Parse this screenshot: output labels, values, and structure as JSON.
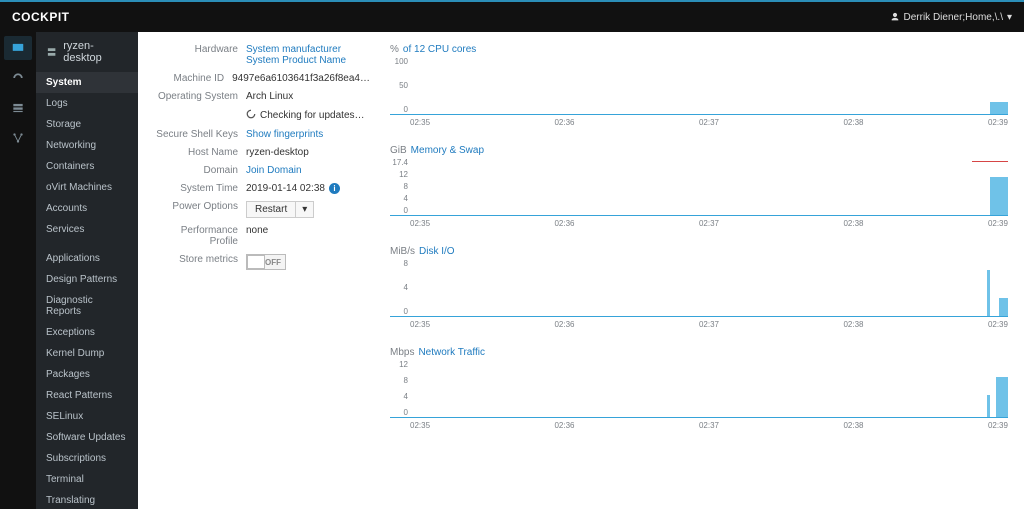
{
  "brand": "COCKPIT",
  "user": {
    "icon": "user-icon",
    "name": "Derrik Diener;Home,\\.\\"
  },
  "iconbar": [
    {
      "name": "dashboard-icon",
      "active": true
    },
    {
      "name": "gauge-icon",
      "active": false
    },
    {
      "name": "storage-icon",
      "active": false
    },
    {
      "name": "network-icon",
      "active": false
    }
  ],
  "host_name": "ryzen-desktop",
  "nav": {
    "items": [
      "System",
      "Logs",
      "Storage",
      "Networking",
      "Containers",
      "oVirt Machines",
      "Accounts",
      "Services",
      "Applications",
      "Design Patterns",
      "Diagnostic Reports",
      "Exceptions",
      "Kernel Dump",
      "Packages",
      "React Patterns",
      "SELinux",
      "Software Updates",
      "Subscriptions",
      "Terminal",
      "Translating"
    ],
    "active_index": 0,
    "gap_after_index": 7
  },
  "details": {
    "rows": [
      {
        "label": "Hardware",
        "value": "System manufacturer System Product Name",
        "link": true
      },
      {
        "label": "Machine ID",
        "value": "9497e6a6103641f3a26f8ea4…"
      },
      {
        "label": "Operating System",
        "value": "Arch Linux"
      },
      {
        "label": "",
        "value": "Checking for updates…",
        "spinner": true
      },
      {
        "label": "Secure Shell Keys",
        "value": "Show fingerprints",
        "link": true
      },
      {
        "label": "Host Name",
        "value": "ryzen-desktop"
      },
      {
        "label": "Domain",
        "value": "Join Domain",
        "link": true
      },
      {
        "label": "System Time",
        "value": "2019-01-14 02:38",
        "info": true
      },
      {
        "label": "Power Options",
        "value": "Restart",
        "dropdown": true
      },
      {
        "label": "Performance Profile",
        "value": "none"
      },
      {
        "label": "Store metrics",
        "value": "OFF",
        "toggle": true
      }
    ]
  },
  "charts": {
    "xaxis_labels": [
      "02:35",
      "02:36",
      "02:37",
      "02:38",
      "02:39"
    ],
    "colors": {
      "line": "#36a3d9",
      "fill": "#6fc2e8",
      "red": "#d64545"
    },
    "blocks": [
      {
        "unit": "%",
        "title": "of 12 CPU cores",
        "ymax": 100,
        "yticks": [
          "100",
          "50",
          "0"
        ],
        "series": {
          "tail": [
            {
              "x": 97,
              "w": 3,
              "h": 12
            }
          ]
        },
        "redline": false
      },
      {
        "unit": "GiB",
        "title": "Memory & Swap",
        "ymax": 17.4,
        "yticks": [
          "17.4",
          "12",
          "8",
          "4",
          "0"
        ],
        "series": {
          "tail": [
            {
              "x": 97,
              "w": 3,
              "h": 38
            }
          ]
        },
        "redline": true
      },
      {
        "unit": "MiB/s",
        "title": "Disk I/O",
        "ymax": 8,
        "yticks": [
          "8",
          "4",
          "0"
        ],
        "series": {
          "tail": [
            {
              "x": 96.5,
              "w": 0.5,
              "h": 46
            },
            {
              "x": 98.5,
              "w": 1.5,
              "h": 18
            }
          ]
        },
        "redline": false
      },
      {
        "unit": "Mbps",
        "title": "Network Traffic",
        "ymax": 12,
        "yticks": [
          "12",
          "8",
          "4",
          "0"
        ],
        "series": {
          "tail": [
            {
              "x": 96.5,
              "w": 0.5,
              "h": 22
            },
            {
              "x": 98,
              "w": 2,
              "h": 40
            }
          ]
        },
        "redline": false
      }
    ]
  }
}
